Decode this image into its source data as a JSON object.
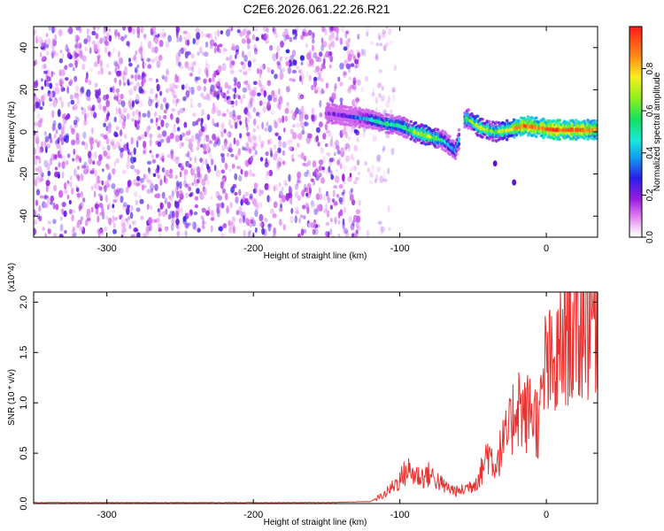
{
  "title": "C2E6.2026.061.22.26.R21",
  "colors": {
    "signal": "#e8322f",
    "frame": "#000000",
    "scatter": "#7a1fe0"
  },
  "chart_data": [
    {
      "type": "heatmap",
      "title": "C2E6.2026.061.22.26.R21",
      "xlabel": "Height of straight line (km)",
      "ylabel": "Frequency (Hz)",
      "xlim": [
        -350,
        35
      ],
      "ylim": [
        -50,
        50
      ],
      "xticks": [
        -300,
        -200,
        -100,
        0
      ],
      "yticks": [
        -40,
        -20,
        0,
        20,
        40
      ],
      "colorbar": {
        "label": "Normalized spectral amplitude",
        "range": [
          0.0,
          1.0
        ],
        "ticks": [
          "0.0",
          "0.2",
          "0.4",
          "0.6",
          "0.8"
        ]
      },
      "noise_region_x": [
        -350,
        -128
      ],
      "ridge": {
        "x": [
          -150,
          -130,
          -120,
          -110,
          -100,
          -90,
          -80,
          -70,
          -62,
          -55,
          -45,
          -35,
          -25,
          -15,
          -5,
          5,
          15,
          25,
          35
        ],
        "frequency": [
          9,
          7,
          6,
          4,
          3,
          0,
          -2,
          -4,
          -9,
          7,
          2,
          0,
          1,
          3,
          2,
          1,
          1,
          1,
          1
        ],
        "amplitude": [
          0.15,
          0.3,
          0.45,
          0.55,
          0.5,
          0.65,
          0.7,
          0.5,
          0.4,
          0.6,
          0.7,
          0.6,
          0.75,
          0.9,
          0.85,
          0.95,
          0.9,
          0.9,
          0.8
        ]
      },
      "isolated_points": [
        {
          "x": -35,
          "frequency": -15
        },
        {
          "x": -22,
          "frequency": -24
        }
      ]
    },
    {
      "type": "line",
      "xlabel": "Height of straight line (km)",
      "ylabel": "SNR (10 * v/v)",
      "y_multiplier": "(x10^4)",
      "xlim": [
        -350,
        35
      ],
      "ylim": [
        0,
        2.1
      ],
      "xticks": [
        -300,
        -200,
        -100,
        0
      ],
      "yticks": [
        "0.0",
        "0.5",
        "1.0",
        "1.5",
        "2.0"
      ],
      "series": [
        {
          "name": "SNR",
          "x": [
            -350,
            -250,
            -150,
            -120,
            -110,
            -100,
            -95,
            -90,
            -85,
            -80,
            -75,
            -70,
            -60,
            -50,
            -45,
            -40,
            -35,
            -30,
            -25,
            -20,
            -15,
            -10,
            -5,
            0,
            5,
            10,
            15,
            20,
            25,
            30,
            35
          ],
          "y": [
            0.01,
            0.01,
            0.01,
            0.02,
            0.1,
            0.25,
            0.35,
            0.3,
            0.28,
            0.3,
            0.25,
            0.18,
            0.12,
            0.2,
            0.3,
            0.55,
            0.4,
            0.6,
            0.75,
            1.1,
            0.9,
            1.0,
            0.8,
            1.5,
            1.3,
            1.6,
            1.9,
            1.7,
            1.95,
            2.0,
            2.05
          ]
        }
      ]
    }
  ]
}
